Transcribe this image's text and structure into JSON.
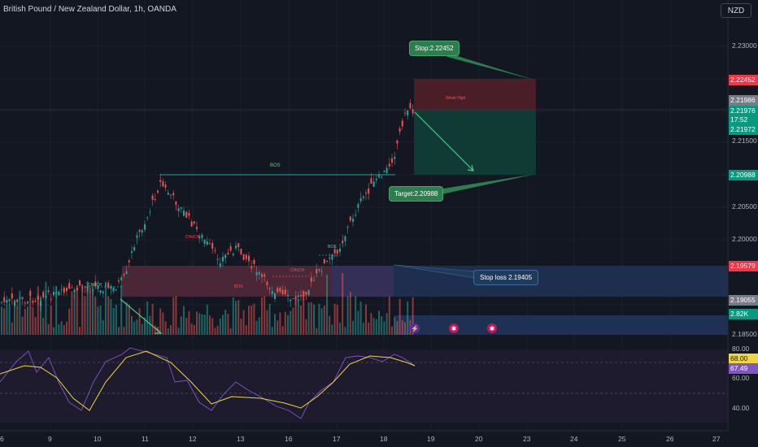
{
  "header": {
    "title": "British Pound / New Zealand Dollar, 1h, OANDA",
    "currency_button": "NZD"
  },
  "price_axis": {
    "ticks": [
      "2.23000",
      "2.22452",
      "2.21986",
      "2.21976",
      "17:52",
      "2.21972",
      "2.21500",
      "2.20988",
      "2.20500",
      "2.20000",
      "2.19579",
      "2.19055",
      "2.82K",
      "2.18500"
    ]
  },
  "price_tags": [
    {
      "label": "2.22452",
      "color": "#f23645"
    },
    {
      "label": "2.21986",
      "color": "#787b86"
    },
    {
      "label": "2.21976",
      "color": "#089981"
    },
    {
      "label": "17:52",
      "color": "#089981"
    },
    {
      "label": "2.21972",
      "color": "#089981"
    },
    {
      "label": "2.20988",
      "color": "#089981"
    },
    {
      "label": "2.19579",
      "color": "#f23645"
    },
    {
      "label": "2.19055",
      "color": "#787b86"
    },
    {
      "label": "2.82K",
      "color": "#089981"
    }
  ],
  "annotations": {
    "stop_callout": "Stop:2.22452",
    "target_callout": "Target:2.20988",
    "stop_loss_box": "Stop loss 2.19405",
    "bos_top": "BOS",
    "bos_small": "BOS",
    "choch_left": "CHoCH",
    "choch_mid": "CHoCH",
    "choch_right": "CHoCH",
    "bos_low": "BOS",
    "weak_high": "Weak High"
  },
  "oscillator": {
    "ticks": [
      "80.00",
      "68.00",
      "67.49",
      "60.00",
      "40.00"
    ]
  },
  "time_axis": {
    "labels": [
      "6",
      "9",
      "10",
      "11",
      "12",
      "13",
      "16",
      "17",
      "18",
      "19",
      "20",
      "23",
      "24",
      "25",
      "26",
      "27"
    ]
  },
  "colors": {
    "bull": "#26a69a",
    "bear": "#ef5350",
    "background": "#131722",
    "target_zone": "#0f3b34",
    "stop_zone": "#4a1e26",
    "demand_zone": "#1f3153"
  }
}
